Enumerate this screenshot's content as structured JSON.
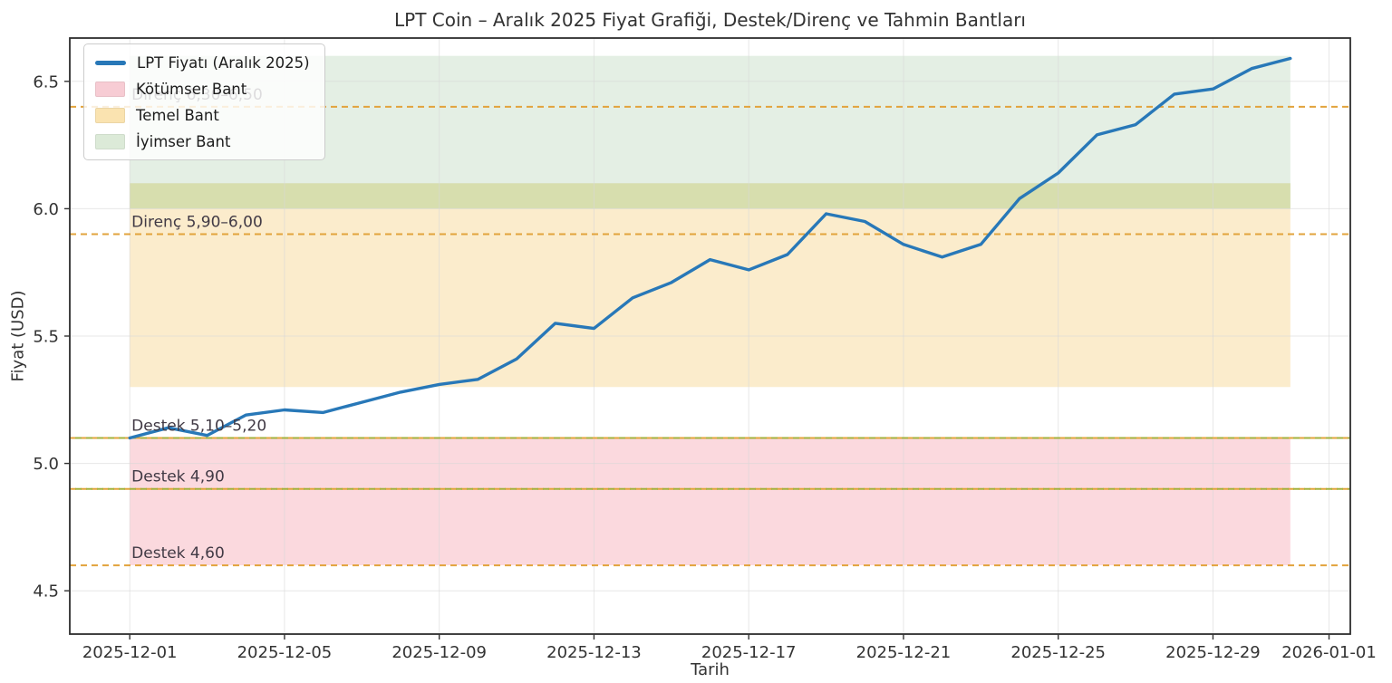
{
  "title": "LPT Coin – Aralık 2025 Fiyat Grafiği, Destek/Direnç ve Tahmin Bantları",
  "xlabel": "Tarih",
  "ylabel": "Fiyat (USD)",
  "legend": {
    "items": [
      {
        "label": "LPT Fiyatı (Aralık 2025)",
        "swatch": "line",
        "color": "#2878b8"
      },
      {
        "label": "Kötümser Bant",
        "swatch": "patch",
        "color": "#f7ccd4"
      },
      {
        "label": "Temel Bant",
        "swatch": "patch",
        "color": "#fae3b0"
      },
      {
        "label": "İyimser Bant",
        "swatch": "patch",
        "color": "#dcead8"
      }
    ]
  },
  "chart_data": {
    "type": "line",
    "title": "LPT Coin – Aralık 2025 Fiyat Grafiği, Destek/Direnç ve Tahmin Bantları",
    "xlabel": "Tarih",
    "ylabel": "Fiyat (USD)",
    "x": [
      "2025-12-01",
      "2025-12-02",
      "2025-12-03",
      "2025-12-04",
      "2025-12-05",
      "2025-12-06",
      "2025-12-07",
      "2025-12-08",
      "2025-12-09",
      "2025-12-10",
      "2025-12-11",
      "2025-12-12",
      "2025-12-13",
      "2025-12-14",
      "2025-12-15",
      "2025-12-16",
      "2025-12-17",
      "2025-12-18",
      "2025-12-19",
      "2025-12-20",
      "2025-12-21",
      "2025-12-22",
      "2025-12-23",
      "2025-12-24",
      "2025-12-25",
      "2025-12-26",
      "2025-12-27",
      "2025-12-28",
      "2025-12-29",
      "2025-12-30",
      "2025-12-31"
    ],
    "series": [
      {
        "name": "LPT Fiyatı (Aralık 2025)",
        "values": [
          5.1,
          5.14,
          5.11,
          5.19,
          5.21,
          5.2,
          5.24,
          5.28,
          5.31,
          5.33,
          5.41,
          5.55,
          5.53,
          5.65,
          5.71,
          5.8,
          5.76,
          5.82,
          5.98,
          5.95,
          5.86,
          5.81,
          5.86,
          6.04,
          6.14,
          6.29,
          6.33,
          6.45,
          6.47,
          6.55,
          6.59
        ]
      }
    ],
    "bands": [
      {
        "name": "Kötümser Bant",
        "ymin": 4.6,
        "ymax": 5.1,
        "color": "#fbd9de"
      },
      {
        "name": "Temel Bant",
        "ymin": 5.3,
        "ymax": 6.1,
        "color": "#fbeccc"
      },
      {
        "name": "İyimser Bant",
        "ymin": 6.0,
        "ymax": 6.6,
        "color": "#e4efe4"
      }
    ],
    "band_overlap": {
      "ymin": 6.0,
      "ymax": 6.1,
      "color": "#d7deae"
    },
    "hlines": [
      {
        "y": 6.4,
        "label": "Direnç 6,30–6,50",
        "two_tone": false,
        "behind_legend": true
      },
      {
        "y": 5.9,
        "label": "Direnç 5,90–6,00",
        "two_tone": false,
        "behind_legend": false
      },
      {
        "y": 5.1,
        "label": "Destek 5,10–5,20",
        "two_tone": true,
        "behind_legend": false
      },
      {
        "y": 4.9,
        "label": "Destek 4,90",
        "two_tone": true,
        "behind_legend": false
      },
      {
        "y": 4.6,
        "label": "Destek 4,60",
        "two_tone": false,
        "behind_legend": false
      }
    ],
    "x_ticks": [
      "2025-12-01",
      "2025-12-05",
      "2025-12-09",
      "2025-12-13",
      "2025-12-17",
      "2025-12-21",
      "2025-12-25",
      "2025-12-29",
      "2026-01-01"
    ],
    "y_ticks": [
      4.5,
      5.0,
      5.5,
      6.0,
      6.5
    ],
    "ylim": [
      4.33,
      6.67
    ],
    "xlim_days": [
      -1.55,
      31.55
    ],
    "grid": true,
    "legend_position": "upper left",
    "line_color": "#2878b8",
    "dash_color": "#e2a33c",
    "dash_color_alt": "#a3b13c",
    "annotation_color": "#413a45",
    "tick_color": "#333333",
    "grid_color": "#d8d8d8",
    "spine_color": "#2e2e2e"
  }
}
